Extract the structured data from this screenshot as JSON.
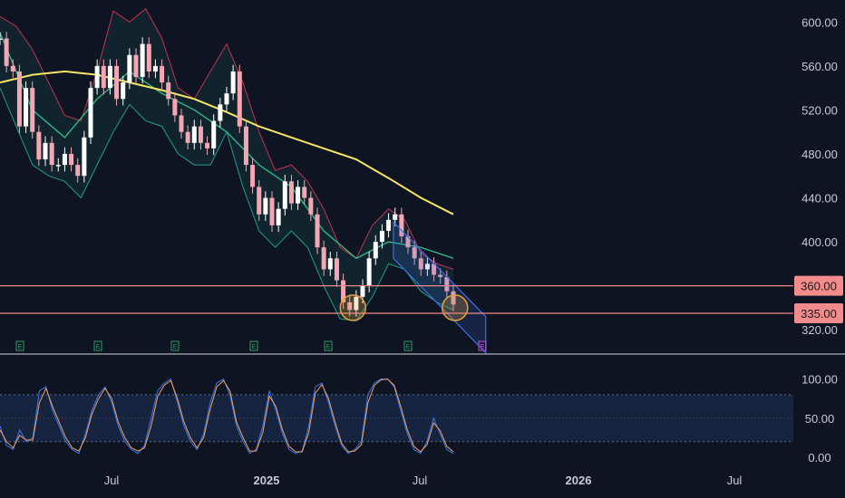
{
  "colors": {
    "background": "#0f1422",
    "axis_text": "#c8cbd4",
    "candle_up": "#ffffff",
    "candle_down": "#f4a7b3",
    "ema_long": "#f5e663",
    "ema_mid": "#2fbf8a",
    "bb_upper": "#c2324f",
    "bb_lower": "#1f9e8c",
    "bb_basis": "#3a78d6",
    "bb_fill": "rgba(31,158,140,0.12)",
    "level_line": "#f08a8a",
    "level_label_bg": "#f28b8b",
    "channel": "#3d6de6",
    "highlight": "#e8a03a",
    "rsi_k": "#3a78f0",
    "rsi_d": "#f0a060",
    "rsi_band": "rgba(60,110,200,0.18)",
    "earnings_green": "#2e9e68",
    "earnings_purple": "#c04fd6"
  },
  "chart_data": [
    {
      "type": "candlestick",
      "panel": "price",
      "x_axis_labels": [
        "Jul",
        "2025",
        "Jul",
        "2026",
        "Jul"
      ],
      "y_ticks": [
        "600.00",
        "560.00",
        "520.00",
        "480.00",
        "440.00",
        "400.00",
        "320.00"
      ],
      "ylim": [
        307,
        620
      ],
      "price_levels": [
        {
          "value": 360,
          "label": "360.00"
        },
        {
          "value": 335,
          "label": "335.00"
        }
      ],
      "earnings_markers": [
        "E",
        "E",
        "E",
        "E",
        "E",
        "E",
        "E"
      ],
      "series_points": [
        [
          0,
          585
        ],
        [
          4,
          560
        ],
        [
          8,
          555
        ],
        [
          12,
          505
        ],
        [
          16,
          540
        ],
        [
          20,
          500
        ],
        [
          24,
          475
        ],
        [
          28,
          490
        ],
        [
          32,
          470
        ],
        [
          36,
          470
        ],
        [
          40,
          480
        ],
        [
          44,
          470
        ],
        [
          48,
          460
        ],
        [
          52,
          495
        ],
        [
          56,
          540
        ],
        [
          60,
          560
        ],
        [
          64,
          540
        ],
        [
          68,
          560
        ],
        [
          72,
          530
        ],
        [
          76,
          545
        ],
        [
          80,
          570
        ],
        [
          84,
          550
        ],
        [
          88,
          580
        ],
        [
          92,
          555
        ],
        [
          96,
          560
        ],
        [
          100,
          545
        ],
        [
          104,
          530
        ],
        [
          108,
          515
        ],
        [
          112,
          500
        ],
        [
          116,
          490
        ],
        [
          120,
          505
        ],
        [
          124,
          490
        ],
        [
          128,
          485
        ],
        [
          132,
          510
        ],
        [
          136,
          525
        ],
        [
          140,
          535
        ],
        [
          144,
          555
        ],
        [
          148,
          505
        ],
        [
          152,
          470
        ],
        [
          156,
          450
        ],
        [
          160,
          425
        ],
        [
          164,
          440
        ],
        [
          168,
          415
        ],
        [
          172,
          430
        ],
        [
          176,
          455
        ],
        [
          180,
          435
        ],
        [
          184,
          450
        ],
        [
          188,
          440
        ],
        [
          192,
          425
        ],
        [
          196,
          395
        ],
        [
          200,
          375
        ],
        [
          204,
          385
        ],
        [
          208,
          365
        ],
        [
          212,
          345
        ],
        [
          216,
          338
        ],
        [
          220,
          350
        ],
        [
          224,
          360
        ],
        [
          228,
          385
        ],
        [
          232,
          400
        ],
        [
          236,
          410
        ],
        [
          240,
          420
        ],
        [
          244,
          425
        ],
        [
          248,
          405
        ],
        [
          252,
          395
        ],
        [
          256,
          385
        ],
        [
          260,
          375
        ],
        [
          264,
          380
        ],
        [
          268,
          370
        ],
        [
          272,
          368
        ],
        [
          276,
          355
        ],
        [
          280,
          343
        ]
      ],
      "ema_long": [
        [
          0,
          545
        ],
        [
          20,
          552
        ],
        [
          40,
          555
        ],
        [
          60,
          552
        ],
        [
          80,
          545
        ],
        [
          100,
          538
        ],
        [
          120,
          530
        ],
        [
          140,
          518
        ],
        [
          160,
          505
        ],
        [
          180,
          495
        ],
        [
          200,
          485
        ],
        [
          220,
          475
        ],
        [
          240,
          458
        ],
        [
          260,
          440
        ],
        [
          280,
          425
        ]
      ],
      "ema_mid": [
        [
          0,
          590
        ],
        [
          20,
          520
        ],
        [
          40,
          495
        ],
        [
          60,
          530
        ],
        [
          80,
          555
        ],
        [
          100,
          535
        ],
        [
          120,
          520
        ],
        [
          140,
          500
        ],
        [
          160,
          470
        ],
        [
          180,
          450
        ],
        [
          200,
          410
        ],
        [
          220,
          385
        ],
        [
          240,
          400
        ],
        [
          260,
          395
        ],
        [
          280,
          385
        ]
      ],
      "bb_upper": [
        [
          0,
          605
        ],
        [
          10,
          596
        ],
        [
          20,
          575
        ],
        [
          30,
          545
        ],
        [
          40,
          515
        ],
        [
          50,
          510
        ],
        [
          60,
          555
        ],
        [
          70,
          610
        ],
        [
          80,
          600
        ],
        [
          90,
          612
        ],
        [
          100,
          585
        ],
        [
          110,
          540
        ],
        [
          120,
          530
        ],
        [
          130,
          555
        ],
        [
          140,
          580
        ],
        [
          150,
          545
        ],
        [
          160,
          500
        ],
        [
          170,
          465
        ],
        [
          180,
          470
        ],
        [
          190,
          455
        ],
        [
          200,
          430
        ],
        [
          210,
          395
        ],
        [
          220,
          385
        ],
        [
          230,
          415
        ],
        [
          240,
          430
        ],
        [
          250,
          420
        ],
        [
          260,
          390
        ],
        [
          270,
          380
        ],
        [
          280,
          375
        ]
      ],
      "bb_lower": [
        [
          0,
          540
        ],
        [
          10,
          505
        ],
        [
          20,
          470
        ],
        [
          30,
          460
        ],
        [
          40,
          455
        ],
        [
          50,
          440
        ],
        [
          60,
          470
        ],
        [
          70,
          500
        ],
        [
          80,
          525
        ],
        [
          90,
          510
        ],
        [
          100,
          505
        ],
        [
          110,
          480
        ],
        [
          120,
          470
        ],
        [
          130,
          470
        ],
        [
          140,
          500
        ],
        [
          150,
          450
        ],
        [
          160,
          410
        ],
        [
          170,
          395
        ],
        [
          180,
          410
        ],
        [
          190,
          395
        ],
        [
          200,
          360
        ],
        [
          210,
          330
        ],
        [
          220,
          328
        ],
        [
          230,
          350
        ],
        [
          240,
          380
        ],
        [
          250,
          375
        ],
        [
          260,
          355
        ],
        [
          270,
          345
        ],
        [
          280,
          338
        ]
      ],
      "channel": {
        "from": [
          243,
          418
        ],
        "to": [
          300,
          332
        ],
        "width": 40
      }
    },
    {
      "type": "line",
      "panel": "stochastic_rsi",
      "y_ticks": [
        "100.00",
        "50.00",
        "0.00"
      ],
      "ylim": [
        0,
        110
      ],
      "band": [
        20,
        80
      ],
      "series": [
        {
          "values": [
            40,
            15,
            10,
            35,
            20,
            25,
            85,
            90,
            60,
            40,
            20,
            10,
            5,
            30,
            60,
            80,
            90,
            70,
            40,
            20,
            10,
            5,
            15,
            50,
            85,
            95,
            100,
            70,
            40,
            20,
            10,
            30,
            70,
            95,
            100,
            80,
            40,
            20,
            5,
            10,
            40,
            85,
            60,
            30,
            10,
            5,
            8,
            40,
            90,
            95,
            70,
            40,
            15,
            5,
            10,
            20,
            80,
            95,
            100,
            100,
            90,
            60,
            30,
            10,
            5,
            20,
            50,
            30,
            10,
            5
          ]
        },
        {
          "values": [
            35,
            20,
            12,
            28,
            22,
            22,
            70,
            88,
            65,
            45,
            25,
            12,
            8,
            25,
            55,
            75,
            88,
            75,
            45,
            25,
            12,
            8,
            12,
            40,
            78,
            92,
            98,
            75,
            45,
            25,
            12,
            25,
            62,
            90,
            98,
            85,
            45,
            25,
            8,
            8,
            32,
            78,
            65,
            35,
            14,
            7,
            7,
            32,
            82,
            93,
            75,
            45,
            18,
            7,
            8,
            16,
            70,
            92,
            99,
            100,
            92,
            65,
            35,
            14,
            7,
            16,
            44,
            34,
            14,
            7
          ]
        }
      ]
    }
  ]
}
